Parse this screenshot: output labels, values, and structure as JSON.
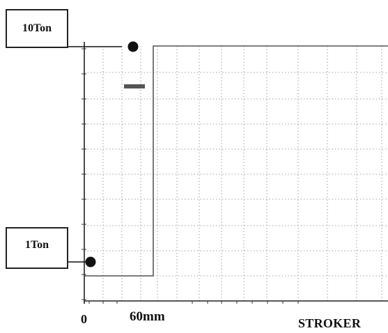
{
  "labels": {
    "upper_load": "10Ton",
    "lower_load": "1Ton",
    "origin": "0",
    "stroke_mark": "60mm",
    "x_axis": "STROKER"
  },
  "colors": {
    "trace": "#333333",
    "grid": "#888888",
    "marker": "#111111",
    "box_border": "#222222"
  },
  "chart_data": {
    "type": "line",
    "title": "",
    "xlabel": "STROKER",
    "ylabel": "",
    "xlim": [
      0,
      150
    ],
    "ylim": [
      0,
      11
    ],
    "grid": true,
    "x_unit": "mm",
    "y_unit": "Ton",
    "series": [
      {
        "x": [
          0,
          0,
          0,
          20,
          20,
          25,
          25,
          150
        ],
        "y": [
          0,
          1,
          1,
          1,
          1,
          1,
          10,
          10
        ]
      }
    ],
    "markers": [
      {
        "label": "1Ton",
        "x": 0,
        "y": 1
      },
      {
        "label": "10Ton",
        "x": 20,
        "y": 10
      }
    ],
    "stroke_annotation": {
      "label": "60mm",
      "x": 20
    }
  }
}
